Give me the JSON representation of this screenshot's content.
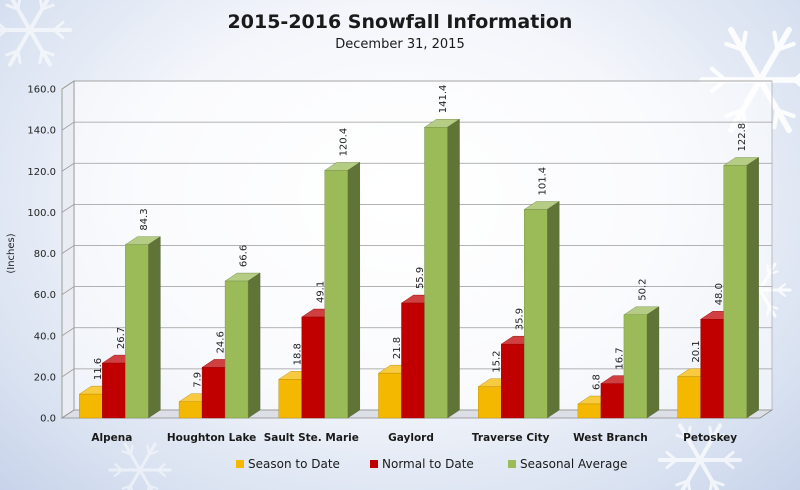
{
  "chart_data": {
    "type": "bar",
    "title": "2015-2016 Snowfall Information",
    "subtitle": "December  31, 2015",
    "xlabel": "",
    "ylabel": "(Inches)",
    "ylim": [
      0,
      160
    ],
    "yticks": [
      "0.0",
      "20.0",
      "40.0",
      "60.0",
      "80.0",
      "100.0",
      "120.0",
      "140.0",
      "160.0"
    ],
    "categories": [
      "Alpena",
      "Houghton Lake",
      "Sault Ste. Marie",
      "Gaylord",
      "Traverse City",
      "West Branch",
      "Petoskey"
    ],
    "series": [
      {
        "name": "Season to Date",
        "color": "#f5b800",
        "values": [
          11.6,
          7.9,
          18.8,
          21.8,
          15.2,
          6.8,
          20.1
        ],
        "labels": [
          "11.6",
          "7.9",
          "18.8",
          "21.8",
          "15.2",
          "6.8",
          "20.1"
        ]
      },
      {
        "name": "Normal to Date",
        "color": "#c00000",
        "values": [
          26.7,
          24.6,
          49.1,
          55.9,
          35.9,
          16.7,
          48.0
        ],
        "labels": [
          "26.7",
          "24.6",
          "49.1",
          "55.9",
          "35.9",
          "16.7",
          "48.0"
        ]
      },
      {
        "name": "Seasonal Average",
        "color": "#9bbb59",
        "values": [
          84.3,
          66.6,
          120.4,
          141.4,
          101.4,
          50.2,
          122.8
        ],
        "labels": [
          "84.3",
          "66.6",
          "120.4",
          "141.4",
          "101.4",
          "50.2",
          "122.8"
        ]
      }
    ],
    "grid": true,
    "legend": "bottom"
  }
}
